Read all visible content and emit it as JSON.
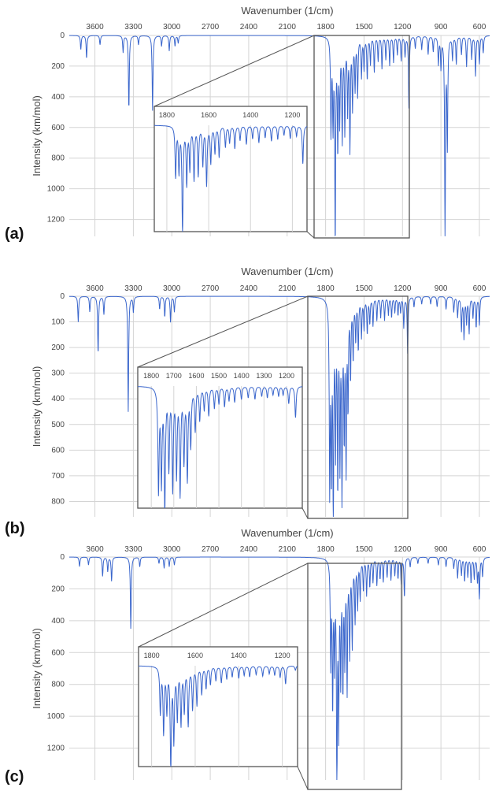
{
  "spectra": [
    {
      "tag": "(a)",
      "xlabel": "Wavenumber (1/cm)",
      "ylabel": "Intensity (km/mol)",
      "xlim": [
        3800,
        520
      ],
      "ylim": [
        0,
        1310
      ],
      "xticks": [
        3600,
        3300,
        3000,
        2700,
        2400,
        2100,
        1800,
        1500,
        1200,
        900,
        600
      ],
      "yticks": [
        0,
        200,
        400,
        600,
        800,
        1000,
        1200
      ],
      "inset_range": [
        1860,
        1130
      ],
      "inset_xticks": [
        1800,
        1600,
        1400,
        1200
      ],
      "peaks": [
        {
          "x": 3710,
          "y": 90
        },
        {
          "x": 3665,
          "y": 150
        },
        {
          "x": 3560,
          "y": 60
        },
        {
          "x": 3380,
          "y": 110
        },
        {
          "x": 3335,
          "y": 480
        },
        {
          "x": 3260,
          "y": 60
        },
        {
          "x": 3150,
          "y": 490
        },
        {
          "x": 3080,
          "y": 70
        },
        {
          "x": 3020,
          "y": 100
        },
        {
          "x": 2975,
          "y": 70
        },
        {
          "x": 2950,
          "y": 50
        },
        {
          "x": 1758,
          "y": 620
        },
        {
          "x": 1742,
          "y": 550
        },
        {
          "x": 1725,
          "y": 1300
        },
        {
          "x": 1705,
          "y": 700
        },
        {
          "x": 1690,
          "y": 520
        },
        {
          "x": 1670,
          "y": 650
        },
        {
          "x": 1650,
          "y": 600
        },
        {
          "x": 1628,
          "y": 470
        },
        {
          "x": 1610,
          "y": 720
        },
        {
          "x": 1590,
          "y": 450
        },
        {
          "x": 1570,
          "y": 330
        },
        {
          "x": 1550,
          "y": 380
        },
        {
          "x": 1520,
          "y": 260
        },
        {
          "x": 1500,
          "y": 210
        },
        {
          "x": 1475,
          "y": 280
        },
        {
          "x": 1450,
          "y": 180
        },
        {
          "x": 1420,
          "y": 230
        },
        {
          "x": 1390,
          "y": 160
        },
        {
          "x": 1360,
          "y": 210
        },
        {
          "x": 1330,
          "y": 150
        },
        {
          "x": 1300,
          "y": 190
        },
        {
          "x": 1270,
          "y": 170
        },
        {
          "x": 1240,
          "y": 120
        },
        {
          "x": 1210,
          "y": 160
        },
        {
          "x": 1180,
          "y": 130
        },
        {
          "x": 1150,
          "y": 470
        },
        {
          "x": 1100,
          "y": 80
        },
        {
          "x": 1050,
          "y": 90
        },
        {
          "x": 1000,
          "y": 120
        },
        {
          "x": 960,
          "y": 100
        },
        {
          "x": 920,
          "y": 180
        },
        {
          "x": 900,
          "y": 200
        },
        {
          "x": 868,
          "y": 1270
        },
        {
          "x": 850,
          "y": 700
        },
        {
          "x": 810,
          "y": 150
        },
        {
          "x": 780,
          "y": 180
        },
        {
          "x": 740,
          "y": 120
        },
        {
          "x": 700,
          "y": 200
        },
        {
          "x": 660,
          "y": 150
        },
        {
          "x": 630,
          "y": 260
        },
        {
          "x": 600,
          "y": 180
        },
        {
          "x": 570,
          "y": 110
        }
      ]
    },
    {
      "tag": "(b)",
      "xlabel": "Wavenumber (1/cm)",
      "ylabel": "Intensity (km/mol)",
      "xlim": [
        3800,
        520
      ],
      "ylim": [
        0,
        860
      ],
      "xticks": [
        3600,
        3300,
        3000,
        2700,
        2400,
        2100,
        1800,
        1500,
        1200,
        900,
        600
      ],
      "yticks": [
        0,
        100,
        200,
        300,
        400,
        500,
        600,
        700,
        800
      ],
      "inset_range": [
        1860,
        1130
      ],
      "inset_xticks": [
        1800,
        1700,
        1600,
        1500,
        1400,
        1300,
        1200
      ],
      "peaks": [
        {
          "x": 3730,
          "y": 100
        },
        {
          "x": 3640,
          "y": 60
        },
        {
          "x": 3575,
          "y": 225
        },
        {
          "x": 3530,
          "y": 70
        },
        {
          "x": 3340,
          "y": 450
        },
        {
          "x": 3300,
          "y": 60
        },
        {
          "x": 3095,
          "y": 50
        },
        {
          "x": 3055,
          "y": 80
        },
        {
          "x": 3010,
          "y": 100
        },
        {
          "x": 2980,
          "y": 60
        },
        {
          "x": 1768,
          "y": 720
        },
        {
          "x": 1755,
          "y": 650
        },
        {
          "x": 1740,
          "y": 860
        },
        {
          "x": 1722,
          "y": 550
        },
        {
          "x": 1705,
          "y": 700
        },
        {
          "x": 1688,
          "y": 600
        },
        {
          "x": 1672,
          "y": 730
        },
        {
          "x": 1655,
          "y": 500
        },
        {
          "x": 1640,
          "y": 630
        },
        {
          "x": 1625,
          "y": 400
        },
        {
          "x": 1605,
          "y": 300
        },
        {
          "x": 1585,
          "y": 230
        },
        {
          "x": 1565,
          "y": 160
        },
        {
          "x": 1545,
          "y": 200
        },
        {
          "x": 1520,
          "y": 150
        },
        {
          "x": 1500,
          "y": 120
        },
        {
          "x": 1475,
          "y": 140
        },
        {
          "x": 1455,
          "y": 100
        },
        {
          "x": 1430,
          "y": 110
        },
        {
          "x": 1400,
          "y": 90
        },
        {
          "x": 1370,
          "y": 80
        },
        {
          "x": 1340,
          "y": 90
        },
        {
          "x": 1310,
          "y": 70
        },
        {
          "x": 1285,
          "y": 80
        },
        {
          "x": 1260,
          "y": 60
        },
        {
          "x": 1235,
          "y": 70
        },
        {
          "x": 1215,
          "y": 60
        },
        {
          "x": 1190,
          "y": 120
        },
        {
          "x": 1160,
          "y": 220
        },
        {
          "x": 1110,
          "y": 40
        },
        {
          "x": 1050,
          "y": 30
        },
        {
          "x": 980,
          "y": 30
        },
        {
          "x": 930,
          "y": 40
        },
        {
          "x": 860,
          "y": 50
        },
        {
          "x": 800,
          "y": 60
        },
        {
          "x": 770,
          "y": 80
        },
        {
          "x": 740,
          "y": 130
        },
        {
          "x": 720,
          "y": 160
        },
        {
          "x": 700,
          "y": 100
        },
        {
          "x": 680,
          "y": 140
        },
        {
          "x": 650,
          "y": 80
        },
        {
          "x": 625,
          "y": 120
        },
        {
          "x": 600,
          "y": 110
        }
      ]
    },
    {
      "tag": "(c)",
      "xlabel": "Wavenumber (1/cm)",
      "ylabel": "Intensity (km/mol)",
      "xlim": [
        3800,
        520
      ],
      "ylim": [
        0,
        1400
      ],
      "xticks": [
        3600,
        3300,
        3000,
        2700,
        2400,
        2100,
        1800,
        1500,
        1200,
        900,
        600
      ],
      "yticks": [
        0,
        200,
        400,
        600,
        800,
        1000,
        1200
      ],
      "inset_range": [
        1860,
        1130
      ],
      "inset_xticks": [
        1800,
        1600,
        1400,
        1200
      ],
      "peaks": [
        {
          "x": 3720,
          "y": 60
        },
        {
          "x": 3650,
          "y": 50
        },
        {
          "x": 3540,
          "y": 120
        },
        {
          "x": 3500,
          "y": 90
        },
        {
          "x": 3470,
          "y": 150
        },
        {
          "x": 3320,
          "y": 450
        },
        {
          "x": 3250,
          "y": 60
        },
        {
          "x": 3100,
          "y": 40
        },
        {
          "x": 3060,
          "y": 70
        },
        {
          "x": 3020,
          "y": 60
        },
        {
          "x": 2980,
          "y": 50
        },
        {
          "x": 1760,
          "y": 640
        },
        {
          "x": 1745,
          "y": 900
        },
        {
          "x": 1730,
          "y": 600
        },
        {
          "x": 1712,
          "y": 1400
        },
        {
          "x": 1698,
          "y": 1000
        },
        {
          "x": 1682,
          "y": 700
        },
        {
          "x": 1665,
          "y": 780
        },
        {
          "x": 1650,
          "y": 600
        },
        {
          "x": 1632,
          "y": 800
        },
        {
          "x": 1612,
          "y": 580
        },
        {
          "x": 1592,
          "y": 530
        },
        {
          "x": 1570,
          "y": 380
        },
        {
          "x": 1550,
          "y": 300
        },
        {
          "x": 1530,
          "y": 250
        },
        {
          "x": 1505,
          "y": 200
        },
        {
          "x": 1480,
          "y": 230
        },
        {
          "x": 1455,
          "y": 180
        },
        {
          "x": 1430,
          "y": 150
        },
        {
          "x": 1400,
          "y": 170
        },
        {
          "x": 1375,
          "y": 130
        },
        {
          "x": 1350,
          "y": 150
        },
        {
          "x": 1320,
          "y": 120
        },
        {
          "x": 1290,
          "y": 140
        },
        {
          "x": 1260,
          "y": 110
        },
        {
          "x": 1235,
          "y": 130
        },
        {
          "x": 1210,
          "y": 160
        },
        {
          "x": 1185,
          "y": 250
        },
        {
          "x": 1140,
          "y": 60
        },
        {
          "x": 1080,
          "y": 40
        },
        {
          "x": 1000,
          "y": 40
        },
        {
          "x": 920,
          "y": 50
        },
        {
          "x": 860,
          "y": 60
        },
        {
          "x": 800,
          "y": 70
        },
        {
          "x": 770,
          "y": 130
        },
        {
          "x": 740,
          "y": 110
        },
        {
          "x": 715,
          "y": 150
        },
        {
          "x": 690,
          "y": 120
        },
        {
          "x": 665,
          "y": 160
        },
        {
          "x": 640,
          "y": 130
        },
        {
          "x": 615,
          "y": 150
        },
        {
          "x": 600,
          "y": 250
        },
        {
          "x": 575,
          "y": 120
        }
      ]
    }
  ],
  "chart_data": [
    {
      "type": "line",
      "title": "",
      "xlabel": "Wavenumber (1/cm)",
      "ylabel": "Intensity (km/mol)",
      "xlim": [
        3800,
        520
      ],
      "ylim": [
        0,
        1310
      ],
      "y_inverted": true,
      "grid": true,
      "series": [
        {
          "color": "#3a66cc",
          "peak_ref": "spectra.0.peaks"
        }
      ]
    },
    {
      "type": "line",
      "title": "",
      "xlabel": "Wavenumber (1/cm)",
      "ylabel": "Intensity (km/mol)",
      "xlim": [
        3800,
        520
      ],
      "ylim": [
        0,
        860
      ],
      "y_inverted": true,
      "grid": true,
      "series": [
        {
          "color": "#3a66cc",
          "peak_ref": "spectra.1.peaks"
        }
      ]
    },
    {
      "type": "line",
      "title": "",
      "xlabel": "Wavenumber (1/cm)",
      "ylabel": "Intensity (km/mol)",
      "xlim": [
        3800,
        520
      ],
      "ylim": [
        0,
        1400
      ],
      "y_inverted": true,
      "grid": true,
      "series": [
        {
          "color": "#3a66cc",
          "peak_ref": "spectra.2.peaks"
        }
      ]
    }
  ],
  "colors": {
    "line": "#3a66cc",
    "grid": "#d4d4d4",
    "frame": "#555555",
    "text": "#444444"
  }
}
